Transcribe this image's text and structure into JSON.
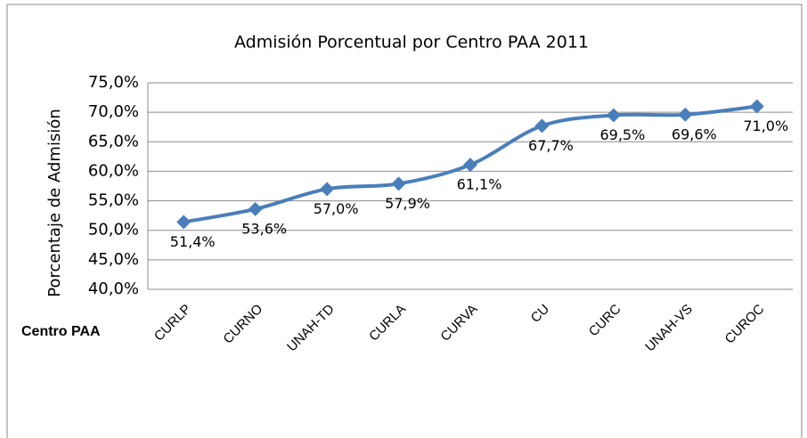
{
  "chart_data": {
    "type": "line",
    "title": "Admisión Porcentual por Centro PAA 2011",
    "ylabel": "Porcentaje de Admisión",
    "xlabel": "Centro PAA",
    "categories": [
      "CURLP",
      "CURNO",
      "UNAH-TD",
      "CURLA",
      "CURVA",
      "CU",
      "CURC",
      "UNAH-VS",
      "CUROC"
    ],
    "series": [
      {
        "name": "Admisión",
        "color": "#4a7ebb",
        "values": [
          51.4,
          53.6,
          57.0,
          57.9,
          61.1,
          67.7,
          69.5,
          69.6,
          71.0
        ],
        "value_labels": [
          "51,4%",
          "53,6%",
          "57,0%",
          "57,9%",
          "61,1%",
          "67,7%",
          "69,5%",
          "69,6%",
          "71,0%"
        ]
      }
    ],
    "ylim": [
      40,
      75
    ],
    "yticks": [
      {
        "value": 40,
        "label": "40,0%"
      },
      {
        "value": 45,
        "label": "45,0%"
      },
      {
        "value": 50,
        "label": "50,0%"
      },
      {
        "value": 55,
        "label": "55,0%"
      },
      {
        "value": 60,
        "label": "60,0%"
      },
      {
        "value": 65,
        "label": "65,0%"
      },
      {
        "value": 70,
        "label": "70,0%"
      },
      {
        "value": 75,
        "label": "75,0%"
      }
    ],
    "grid": true,
    "smooth": true,
    "marker": "diamond"
  }
}
